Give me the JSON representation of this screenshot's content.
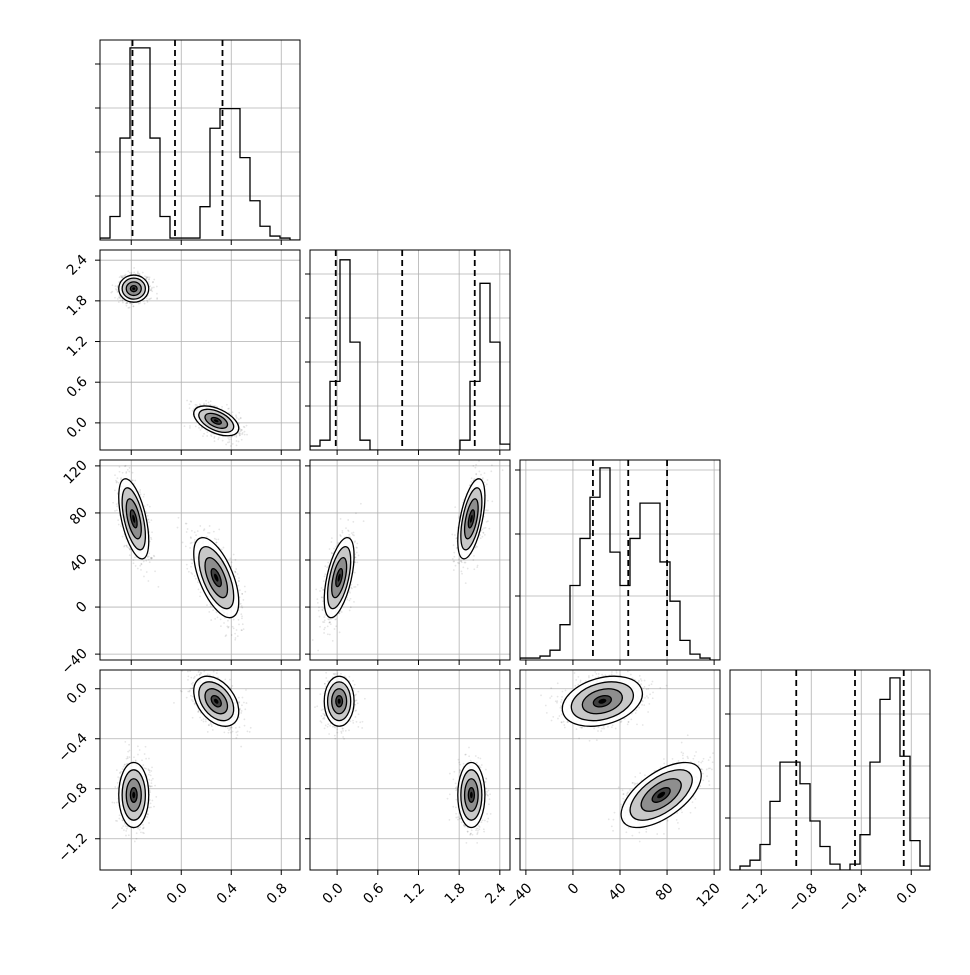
{
  "chart_data": {
    "type": "corner",
    "params": [
      {
        "range": [
          -0.65,
          0.95
        ],
        "ticks": [
          -0.4,
          0.0,
          0.4,
          0.8
        ],
        "tick_labels": [
          "−0.4",
          "0.0",
          "0.4",
          "0.8"
        ],
        "quantiles": [
          -0.39,
          -0.05,
          0.33
        ],
        "hist": {
          "edges_start": -0.65,
          "bin_width": 0.08,
          "counts": [
            0.01,
            0.12,
            0.52,
            0.98,
            0.98,
            0.52,
            0.12,
            0.01,
            0.01,
            0.01,
            0.17,
            0.57,
            0.67,
            0.67,
            0.42,
            0.2,
            0.07,
            0.02,
            0.01,
            0.0
          ]
        },
        "ytick_fracs": [
          0.22,
          0.44,
          0.66,
          0.88
        ]
      },
      {
        "range": [
          -0.4,
          2.55
        ],
        "ticks": [
          0.0,
          0.6,
          1.2,
          1.8,
          2.4
        ],
        "tick_labels": [
          "0.0",
          "0.6",
          "1.2",
          "1.8",
          "2.4"
        ],
        "quantiles": [
          -0.02,
          0.96,
          2.03
        ],
        "hist": {
          "edges_start": -0.4,
          "bin_width": 0.1475,
          "counts": [
            0.02,
            0.05,
            0.35,
            0.97,
            0.55,
            0.05,
            0.0,
            0.0,
            0.0,
            0.0,
            0.0,
            0.0,
            0.0,
            0.0,
            0.0,
            0.05,
            0.35,
            0.85,
            0.55,
            0.03
          ]
        },
        "ytick_fracs": [
          0.22,
          0.44,
          0.66,
          0.88
        ]
      },
      {
        "range": [
          -45,
          125
        ],
        "ticks": [
          -40,
          0,
          40,
          80,
          120
        ],
        "tick_labels": [
          "−40",
          "0",
          "40",
          "80",
          "120"
        ],
        "quantiles": [
          17,
          47,
          80
        ],
        "hist": {
          "edges_start": -45,
          "bin_width": 8.5,
          "counts": [
            0.01,
            0.01,
            0.02,
            0.05,
            0.18,
            0.38,
            0.62,
            0.83,
            0.98,
            0.55,
            0.38,
            0.62,
            0.8,
            0.8,
            0.5,
            0.3,
            0.1,
            0.03,
            0.01,
            0.0
          ]
        },
        "ytick_fracs": [
          0.32,
          0.63,
          0.95
        ]
      },
      {
        "range": [
          -1.45,
          0.15
        ],
        "ticks": [
          -1.2,
          -0.8,
          -0.4,
          0.0
        ],
        "tick_labels": [
          "−1.2",
          "−0.8",
          "−0.4",
          "0.0"
        ],
        "quantiles": [
          -0.92,
          -0.45,
          -0.06
        ],
        "hist": {
          "edges_start": -1.45,
          "bin_width": 0.08,
          "counts": [
            0.0,
            0.02,
            0.05,
            0.13,
            0.35,
            0.55,
            0.55,
            0.44,
            0.25,
            0.12,
            0.03,
            0.0,
            0.03,
            0.18,
            0.55,
            0.87,
            0.98,
            0.58,
            0.15,
            0.02
          ]
        },
        "ytick_fracs": [
          0.26,
          0.52,
          0.78
        ]
      }
    ],
    "clusters": [
      {
        "mean": [
          -0.38,
          1.98,
          75,
          -0.85
        ],
        "sd": [
          0.06,
          0.1,
          17,
          0.13
        ],
        "corr": {
          "0-1": 0.0,
          "0-2": -0.55,
          "0-3": 0.0,
          "1-2": 0.55,
          "1-3": 0.0,
          "2-3": 0.6
        }
      },
      {
        "mean": [
          0.28,
          0.03,
          25,
          -0.1
        ],
        "sd": [
          0.09,
          0.11,
          17,
          0.1
        ],
        "corr": {
          "0-1": -0.5,
          "0-2": -0.6,
          "0-3": -0.4,
          "1-2": 0.55,
          "1-3": 0.0,
          "2-3": 0.3
        }
      }
    ],
    "grid": true,
    "histogram_style": "step",
    "quantile_style": "dashed"
  }
}
